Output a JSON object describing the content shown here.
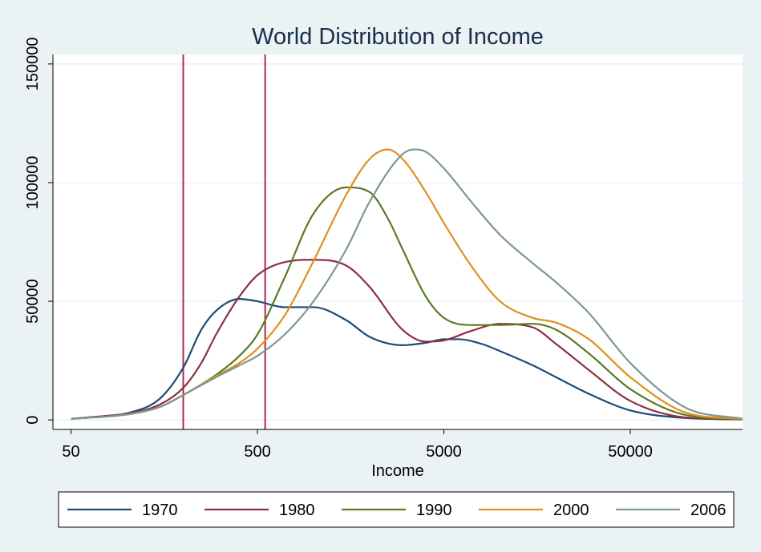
{
  "chart_data": {
    "type": "line",
    "title": "World Distribution of Income",
    "xlabel": "Income",
    "ylabel": "",
    "x_scale": "log10",
    "xlim": [
      40,
      200000
    ],
    "ylim": [
      -4000,
      154000
    ],
    "x_ticks": [
      50,
      500,
      5000,
      50000
    ],
    "x_tick_labels": [
      "50",
      "500",
      "5000",
      "50000"
    ],
    "y_ticks": [
      0,
      50000,
      100000,
      150000
    ],
    "y_tick_labels": [
      "0",
      "50000",
      "100000",
      "150000"
    ],
    "grid": "horizontal",
    "legend_position": "bottom",
    "reference_lines": [
      {
        "orientation": "vertical",
        "x": 200,
        "color": "#b5254f"
      },
      {
        "orientation": "vertical",
        "x": 550,
        "color": "#b5254f"
      }
    ],
    "series": [
      {
        "name": "1970",
        "color": "#1c4b78",
        "x": [
          50,
          80,
          100,
          150,
          200,
          250,
          300,
          400,
          500,
          700,
          1000,
          1500,
          2000,
          3000,
          4000,
          5000,
          6000,
          8000,
          10000,
          15000,
          20000,
          30000,
          50000,
          100000,
          200000
        ],
        "y": [
          500,
          1800,
          2800,
          9000,
          22000,
          38000,
          46000,
          51000,
          50000,
          47500,
          47500,
          42000,
          35000,
          31500,
          32500,
          34000,
          34000,
          32000,
          29000,
          23000,
          18000,
          11000,
          4000,
          800,
          200
        ]
      },
      {
        "name": "1980",
        "color": "#8e2e42",
        "x": [
          50,
          80,
          100,
          150,
          200,
          250,
          300,
          400,
          500,
          700,
          1000,
          1500,
          2000,
          3000,
          4000,
          5000,
          7000,
          10000,
          15000,
          20000,
          30000,
          50000,
          100000,
          200000
        ],
        "y": [
          500,
          1800,
          2600,
          6500,
          13500,
          24000,
          36000,
          52000,
          61000,
          66500,
          67500,
          65000,
          56000,
          38000,
          33000,
          33500,
          37500,
          40500,
          39000,
          32000,
          21000,
          8000,
          1000,
          200
        ]
      },
      {
        "name": "1990",
        "color": "#5a7a25",
        "x": [
          50,
          80,
          100,
          150,
          200,
          300,
          400,
          500,
          700,
          1000,
          1500,
          2000,
          2500,
          3000,
          4000,
          5000,
          7000,
          10000,
          15000,
          20000,
          30000,
          50000,
          100000,
          200000
        ],
        "y": [
          500,
          1500,
          2300,
          5500,
          10500,
          19000,
          27000,
          36000,
          60000,
          87000,
          98000,
          96000,
          85000,
          72000,
          52000,
          43000,
          40000,
          40000,
          40500,
          38000,
          28000,
          13000,
          2000,
          300
        ]
      },
      {
        "name": "2000",
        "color": "#e0901e",
        "x": [
          50,
          80,
          100,
          150,
          200,
          300,
          400,
          500,
          700,
          1000,
          1500,
          2000,
          2500,
          3000,
          4000,
          5000,
          7000,
          10000,
          15000,
          20000,
          30000,
          50000,
          100000,
          200000
        ],
        "y": [
          500,
          1500,
          2300,
          5500,
          10500,
          18500,
          24000,
          30000,
          44000,
          67000,
          95000,
          110000,
          114000,
          110000,
          96000,
          83000,
          65000,
          50000,
          43000,
          41000,
          34000,
          18000,
          3000,
          400
        ]
      },
      {
        "name": "2006",
        "color": "#7d9793",
        "x": [
          50,
          80,
          100,
          150,
          200,
          300,
          400,
          500,
          700,
          1000,
          1500,
          2000,
          3000,
          3500,
          4000,
          5000,
          7000,
          10000,
          15000,
          20000,
          30000,
          50000,
          100000,
          200000
        ],
        "y": [
          500,
          1500,
          2300,
          5500,
          10500,
          18000,
          23000,
          27000,
          36000,
          50000,
          72000,
          92000,
          112000,
          114000,
          113000,
          106000,
          92000,
          78000,
          66000,
          58000,
          45000,
          24000,
          5000,
          500
        ]
      }
    ]
  }
}
